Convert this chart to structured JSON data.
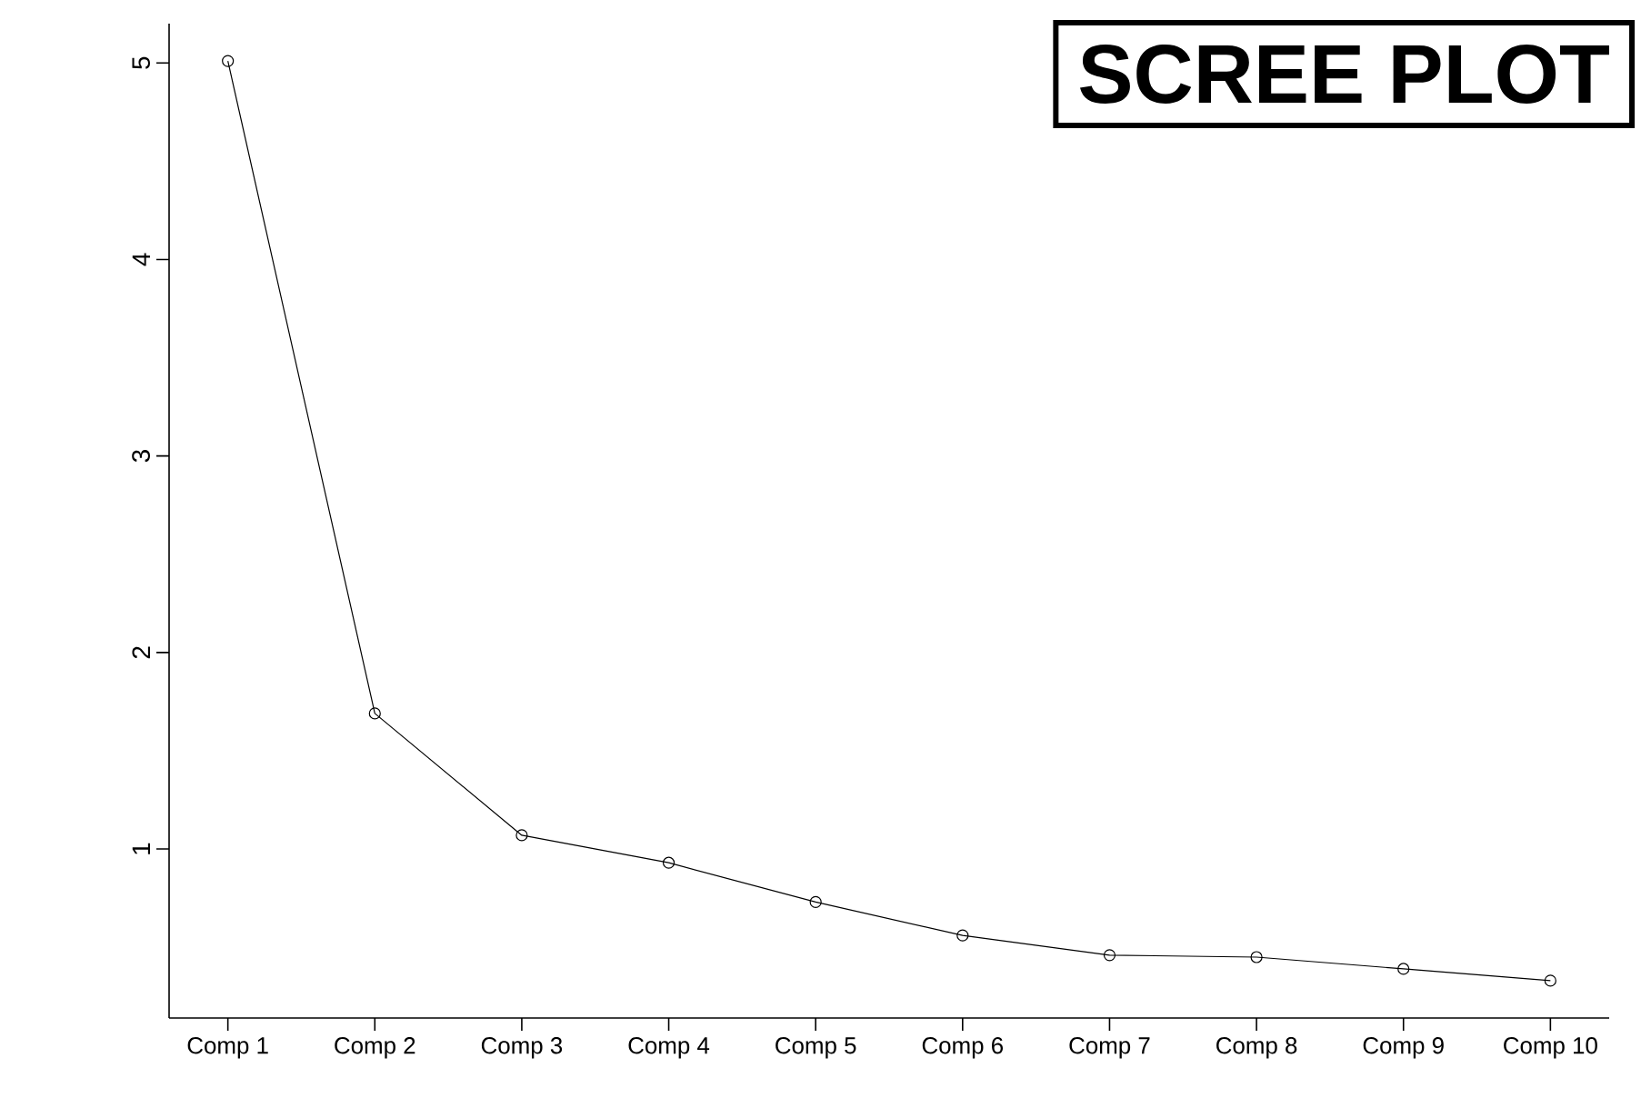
{
  "chart_data": {
    "type": "line",
    "title": "SCREE PLOT",
    "categories": [
      "Comp 1",
      "Comp 2",
      "Comp 3",
      "Comp 4",
      "Comp 5",
      "Comp 6",
      "Comp 7",
      "Comp 8",
      "Comp 9",
      "Comp 10"
    ],
    "values": [
      5.01,
      1.69,
      1.07,
      0.93,
      0.73,
      0.56,
      0.46,
      0.45,
      0.39,
      0.33
    ],
    "color": "#000000",
    "marker": "circle",
    "ylim": [
      0.14,
      5.2
    ],
    "yticks": [
      1,
      2,
      3,
      4,
      5
    ]
  }
}
